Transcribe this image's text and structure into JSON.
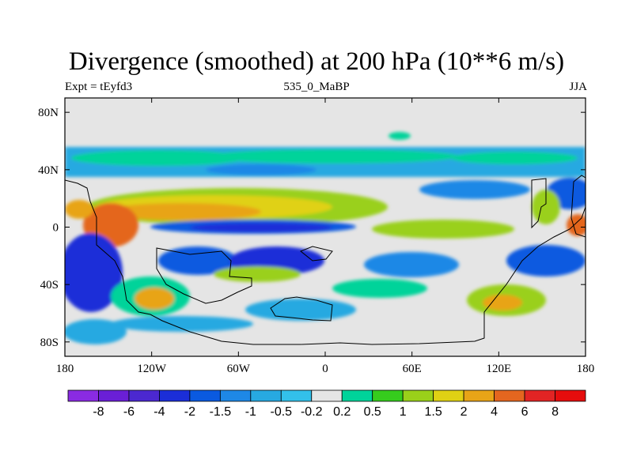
{
  "title": "Divergence (smoothed) at 200 hPa (10**6 m/s)",
  "subtitle_left": "Expt = tEyfd3",
  "subtitle_center": "535_0_MaBP",
  "subtitle_right": "JJA",
  "chart_data": {
    "type": "heatmap",
    "variable": "Divergence (smoothed) at 200 hPa",
    "units": "10**6 m/s",
    "season": "JJA",
    "x_axis": {
      "range": [
        -180,
        180
      ],
      "ticks": [
        {
          "value": -180,
          "label": "180"
        },
        {
          "value": -120,
          "label": "120W"
        },
        {
          "value": -60,
          "label": "60W"
        },
        {
          "value": 0,
          "label": "0"
        },
        {
          "value": 60,
          "label": "60E"
        },
        {
          "value": 120,
          "label": "120E"
        },
        {
          "value": 180,
          "label": "180"
        }
      ]
    },
    "y_axis": {
      "range": [
        -90,
        90
      ],
      "ticks": [
        {
          "value": 80,
          "label": "80N"
        },
        {
          "value": 40,
          "label": "40N"
        },
        {
          "value": 0,
          "label": "0"
        },
        {
          "value": -40,
          "label": "40S"
        },
        {
          "value": -80,
          "label": "80S"
        }
      ]
    },
    "levels": [
      "-8",
      "-6",
      "-4",
      "-2",
      "-1.5",
      "-1",
      "-0.5",
      "-0.2",
      "0.2",
      "0.5",
      "1",
      "1.5",
      "2",
      "4",
      "6",
      "8"
    ],
    "colors": [
      "#8a2be2",
      "#6a1fd6",
      "#4b28d0",
      "#1b2ed8",
      "#0a5ae0",
      "#1e88e6",
      "#27a9e1",
      "#33c0ea",
      "#e5e5e5",
      "#00d39a",
      "#36cc1d",
      "#9ad01a",
      "#e0d114",
      "#e8a417",
      "#e4661f",
      "#e22424",
      "#e60d0d"
    ],
    "fields": [
      {
        "band": "north-subtropics",
        "lat_range": [
          35,
          52
        ],
        "dominant": "-0.5 to 0.5"
      },
      {
        "band": "tropical-divergence",
        "lat_range": [
          5,
          28
        ],
        "dominant": "0.5 to 4",
        "peak_lon": -130
      },
      {
        "band": "equatorial-convergence",
        "lat_range": [
          -12,
          5
        ],
        "dominant": "-4 to -1.5"
      },
      {
        "band": "southern-midlatitudes",
        "lat_range": [
          -55,
          -15
        ],
        "dominant": "-2 to 1.5"
      }
    ]
  }
}
